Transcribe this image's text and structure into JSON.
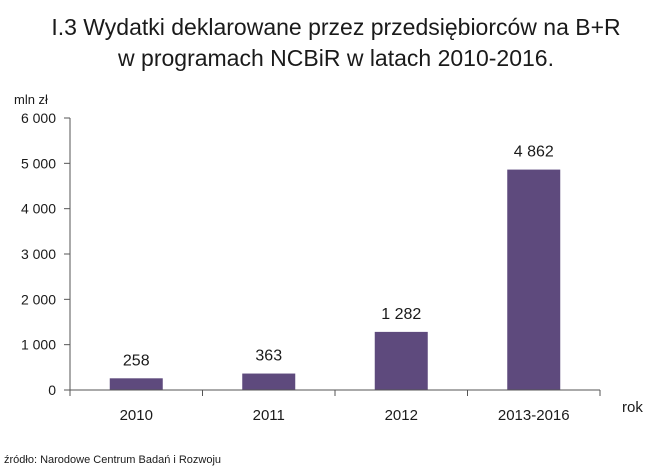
{
  "chart_data": {
    "type": "bar",
    "title": [
      "I.3 Wydatki deklarowane przez przedsiębiorców na B+R",
      "w programach NCBiR w latach 2010-2016."
    ],
    "ylabel": "mln zł",
    "xlabel": "rok",
    "categories": [
      "2010",
      "2011",
      "2012",
      "2013-2016"
    ],
    "values": [
      258,
      363,
      1282,
      4862
    ],
    "data_labels": [
      "258",
      "363",
      "1 282",
      "4 862"
    ],
    "ylim": [
      0,
      6000
    ],
    "yticks": [
      0,
      1000,
      2000,
      3000,
      4000,
      5000,
      6000
    ],
    "ytick_labels": [
      "0",
      "1 000",
      "2 000",
      "3 000",
      "4 000",
      "5 000",
      "6 000"
    ],
    "bar_color": "#5e4a7d",
    "grid": false
  },
  "source": "źródło: Narodowe Centrum Badań i Rozwoju"
}
